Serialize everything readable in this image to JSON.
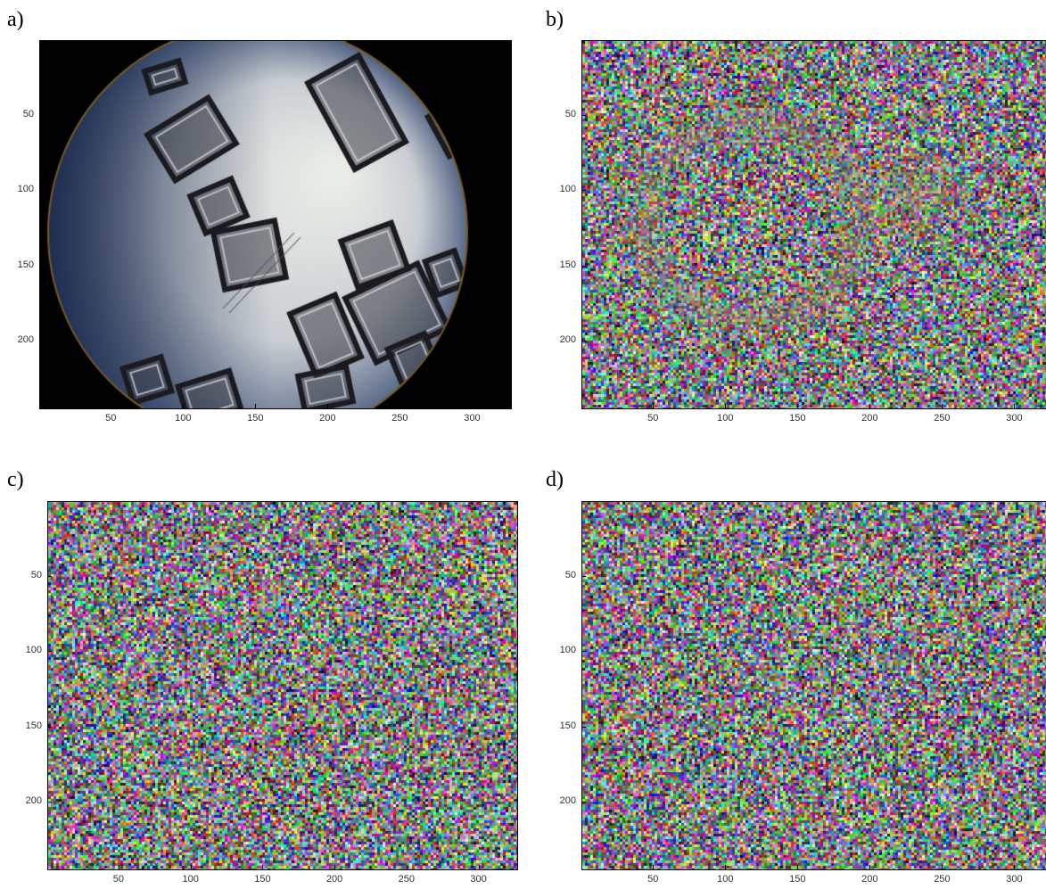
{
  "panels": [
    {
      "label": "a)",
      "kind": "micrograph"
    },
    {
      "label": "b)",
      "kind": "partial-noise"
    },
    {
      "label": "c)",
      "kind": "noise"
    },
    {
      "label": "d)",
      "kind": "noise"
    }
  ],
  "y_ticks": [
    "50",
    "100",
    "150",
    "200"
  ],
  "x_ticks": [
    "50",
    "100",
    "150",
    "200",
    "250",
    "300"
  ],
  "image_extent": {
    "x": [
      1,
      327
    ],
    "y": [
      1,
      245
    ]
  },
  "colors": {
    "background": "#ffffff",
    "frame": "#000000"
  }
}
